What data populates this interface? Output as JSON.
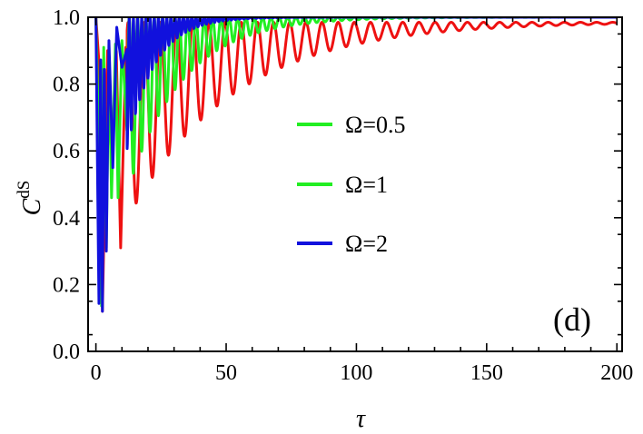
{
  "chart_data": {
    "type": "line",
    "title": "",
    "xlabel": "τ",
    "ylabel": {
      "main": "C",
      "sup": "dS"
    },
    "xlim": [
      -3,
      202
    ],
    "ylim": [
      0.0,
      1.0
    ],
    "xticks": [
      0,
      50,
      100,
      150,
      200
    ],
    "yticks": [
      0.0,
      0.2,
      0.4,
      0.6,
      0.8,
      1.0
    ],
    "xtick_labels": [
      "0",
      "50",
      "100",
      "150",
      "200"
    ],
    "ytick_labels": [
      "0.0",
      "0.2",
      "0.4",
      "0.6",
      "0.8",
      "1.0"
    ],
    "grid": false,
    "legend_position": "center",
    "panel_label": "(d)",
    "series": [
      {
        "name": "Ω=0.5",
        "legend_color": "#22ee22",
        "color": "#ee1111",
        "description": "damped oscillation approaching about 0.985",
        "points": [
          [
            0,
            1.0
          ],
          [
            1.3,
            0.85
          ],
          [
            2.5,
            0.12
          ],
          [
            4.5,
            0.9
          ],
          [
            6,
            0.55
          ],
          [
            7.8,
            0.91
          ],
          [
            9.5,
            0.31
          ],
          [
            11.5,
            0.91
          ],
          [
            13.5,
            0.6
          ],
          [
            15.5,
            0.46
          ],
          [
            18,
            0.92
          ],
          [
            20,
            0.68
          ],
          [
            22.5,
            0.57
          ],
          [
            25,
            0.93
          ],
          [
            28,
            0.66
          ],
          [
            31,
            0.95
          ],
          [
            35,
            0.76
          ],
          [
            40,
            0.96
          ],
          [
            45,
            0.82
          ],
          [
            50,
            0.97
          ],
          [
            60,
            0.88
          ],
          [
            70,
            0.975
          ],
          [
            80,
            0.93
          ],
          [
            90,
            0.98
          ],
          [
            100,
            0.955
          ],
          [
            125,
            0.983
          ],
          [
            150,
            0.985
          ],
          [
            200,
            0.985
          ]
        ],
        "osc_period": 6.2,
        "asymptote": 0.985
      },
      {
        "name": "Ω=1",
        "legend_color": "#22ee22",
        "color": "#22ee22",
        "description": "damped oscillation approaching 1.0",
        "points": [
          [
            0,
            1.0
          ],
          [
            1.3,
            0.55
          ],
          [
            2.2,
            0.12
          ],
          [
            3,
            0.91
          ],
          [
            4,
            0.31
          ],
          [
            5,
            0.9
          ],
          [
            6,
            0.46
          ],
          [
            7.5,
            0.92
          ],
          [
            8.5,
            0.46
          ],
          [
            10,
            0.93
          ],
          [
            12,
            0.65
          ],
          [
            15,
            0.95
          ],
          [
            20,
            0.8
          ],
          [
            25,
            0.98
          ],
          [
            30,
            0.9
          ],
          [
            40,
            0.99
          ],
          [
            50,
            0.995
          ],
          [
            70,
            1.0
          ],
          [
            200,
            1.0
          ]
        ],
        "osc_period": 3.2,
        "asymptote": 1.0
      },
      {
        "name": "Ω=2",
        "legend_color": "#1111dd",
        "color": "#1111dd",
        "description": "fast damped oscillation approaching 1.0",
        "points": [
          [
            0,
            1.0
          ],
          [
            0.8,
            0.4
          ],
          [
            1.2,
            0.12
          ],
          [
            1.8,
            0.91
          ],
          [
            2.5,
            0.12
          ],
          [
            3.2,
            0.88
          ],
          [
            4,
            0.3
          ],
          [
            5,
            0.93
          ],
          [
            6.5,
            0.55
          ],
          [
            8,
            0.97
          ],
          [
            10,
            0.85
          ],
          [
            15,
            0.99
          ],
          [
            20,
            0.95
          ],
          [
            30,
            1.0
          ],
          [
            200,
            1.0
          ]
        ],
        "osc_period": 1.6,
        "asymptote": 1.0
      }
    ]
  }
}
